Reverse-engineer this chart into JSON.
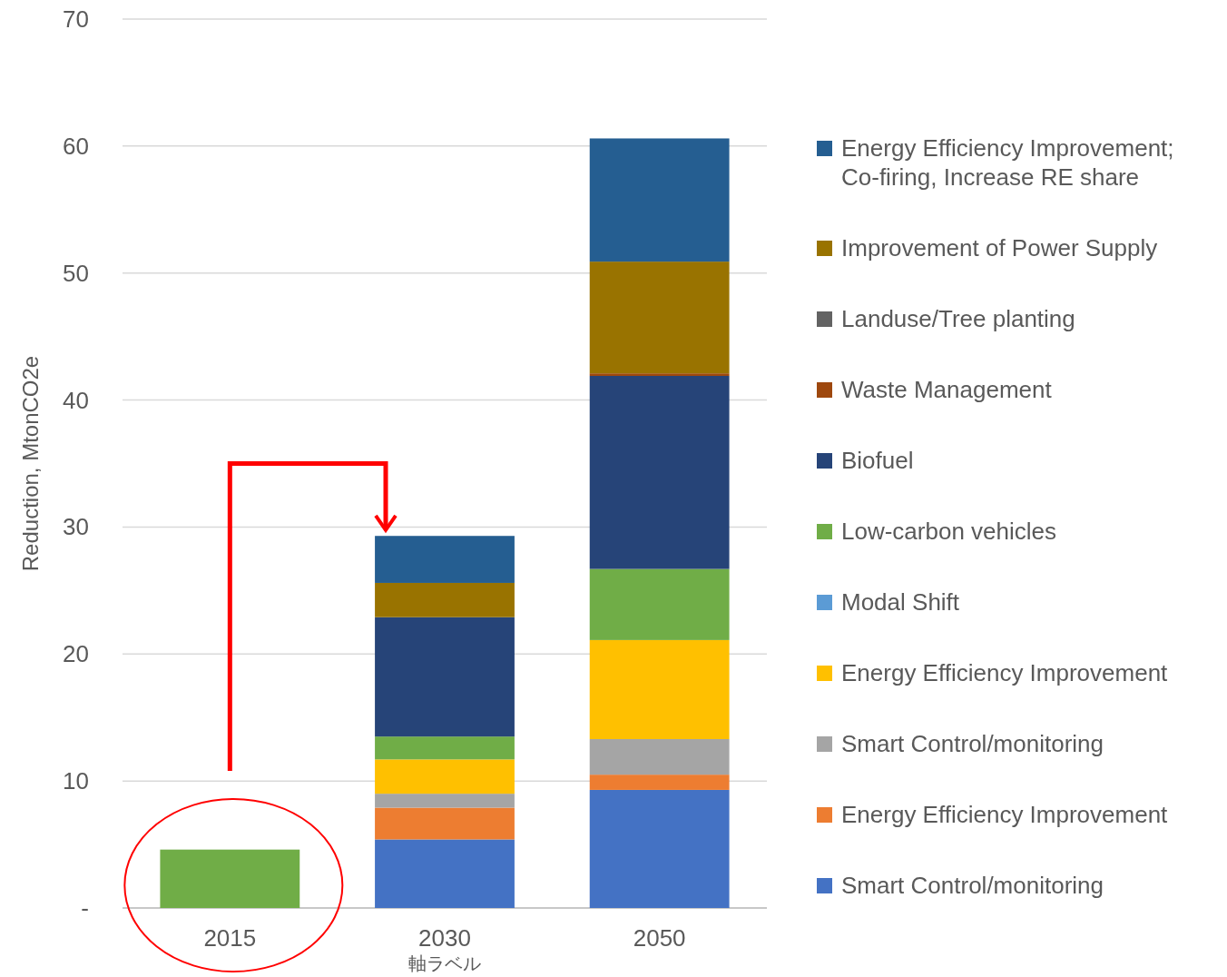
{
  "chart_data": {
    "type": "bar",
    "stacked": true,
    "ylabel": "Reduction, MtonCO2e",
    "xlabel": "軸ラベル",
    "categories": [
      "2015",
      "2030",
      "2050"
    ],
    "ylim": [
      0,
      70
    ],
    "yticks": [
      {
        "value": 0,
        "label": "-"
      },
      10,
      20,
      30,
      40,
      50,
      60,
      70
    ],
    "grid": "y",
    "legend": "right",
    "series": [
      {
        "name": "Smart Control/monitoring",
        "color": "#4472c4",
        "values": [
          0,
          5.4,
          9.3
        ]
      },
      {
        "name": "Energy Efficiency Improvement",
        "color": "#ed7d31",
        "values": [
          0,
          2.5,
          1.2
        ]
      },
      {
        "name": "Smart Control/monitoring",
        "color": "#a5a5a5",
        "values": [
          0,
          1.1,
          2.8
        ]
      },
      {
        "name": "Energy Efficiency Improvement",
        "color": "#ffc000",
        "values": [
          0,
          2.7,
          7.8
        ]
      },
      {
        "name": "Modal Shift",
        "color": "#5b9bd5",
        "values": [
          0,
          0,
          0
        ]
      },
      {
        "name": "Low-carbon vehicles",
        "color": "#70ad47",
        "values": [
          4.6,
          1.8,
          5.6
        ]
      },
      {
        "name": "Biofuel",
        "color": "#264478",
        "values": [
          0,
          9.4,
          15.2
        ]
      },
      {
        "name": "Waste Management",
        "color": "#9e480e",
        "values": [
          0,
          0,
          0.2
        ]
      },
      {
        "name": "Landuse/Tree planting",
        "color": "#636363",
        "values": [
          0,
          0,
          0
        ]
      },
      {
        "name": "Improvement of Power Supply",
        "color": "#997300",
        "values": [
          0,
          2.7,
          8.8
        ]
      },
      {
        "name": "Energy Efficiency Improvement; Co-firing, Increase RE share",
        "color": "#255e91",
        "values": [
          0,
          3.7,
          9.7
        ]
      }
    ]
  }
}
